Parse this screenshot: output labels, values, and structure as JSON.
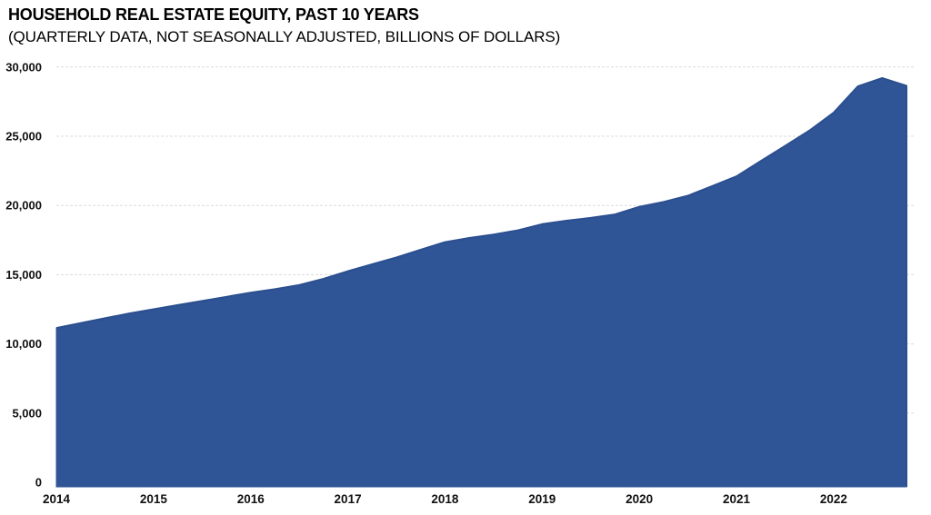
{
  "header": {
    "title": "HOUSEHOLD REAL ESTATE EQUITY, PAST 10 YEARS",
    "subtitle": "(QUARTERLY DATA, NOT SEASONALLY ADJUSTED, BILLIONS OF DOLLARS)"
  },
  "chart_data": {
    "type": "area",
    "title": "HOUSEHOLD REAL ESTATE EQUITY, PAST 10 YEARS",
    "subtitle": "(QUARTERLY DATA, NOT SEASONALLY ADJUSTED, BILLIONS OF DOLLARS)",
    "series_name": "Household real estate equity (billions of dollars)",
    "x": [
      "2014 Q1",
      "2014 Q2",
      "2014 Q3",
      "2014 Q4",
      "2015 Q1",
      "2015 Q2",
      "2015 Q3",
      "2015 Q4",
      "2016 Q1",
      "2016 Q2",
      "2016 Q3",
      "2016 Q4",
      "2017 Q1",
      "2017 Q2",
      "2017 Q3",
      "2017 Q4",
      "2018 Q1",
      "2018 Q2",
      "2018 Q3",
      "2018 Q4",
      "2019 Q1",
      "2019 Q2",
      "2019 Q3",
      "2019 Q4",
      "2020 Q1",
      "2020 Q2",
      "2020 Q3",
      "2020 Q4",
      "2021 Q1",
      "2021 Q2",
      "2021 Q3",
      "2021 Q4",
      "2022 Q1",
      "2022 Q2",
      "2022 Q3",
      "2022 Q4"
    ],
    "values": [
      11150,
      11500,
      11850,
      12200,
      12500,
      12800,
      13100,
      13400,
      13700,
      13950,
      14250,
      14700,
      15250,
      15750,
      16250,
      16800,
      17350,
      17650,
      17900,
      18200,
      18650,
      18900,
      19100,
      19350,
      19900,
      20250,
      20700,
      21400,
      22100,
      23200,
      24300,
      25400,
      26700,
      28600,
      29200,
      28650
    ],
    "x_tick_labels": [
      "2014",
      "2015",
      "2016",
      "2017",
      "2018",
      "2019",
      "2020",
      "2021",
      "2022"
    ],
    "y_tick_labels": [
      "0",
      "5,000",
      "10,000",
      "15,000",
      "20,000",
      "25,000",
      "30,000"
    ],
    "ylim": [
      0,
      30000
    ],
    "y_tick_step": 5000,
    "grid": "horizontal-dashed",
    "legend": "none",
    "colors": {
      "area_fill": "#2F5597",
      "area_stroke": "#2B4F8F",
      "grid": "#DCDCDC",
      "text": "#111111",
      "background": "#FFFFFF"
    }
  }
}
